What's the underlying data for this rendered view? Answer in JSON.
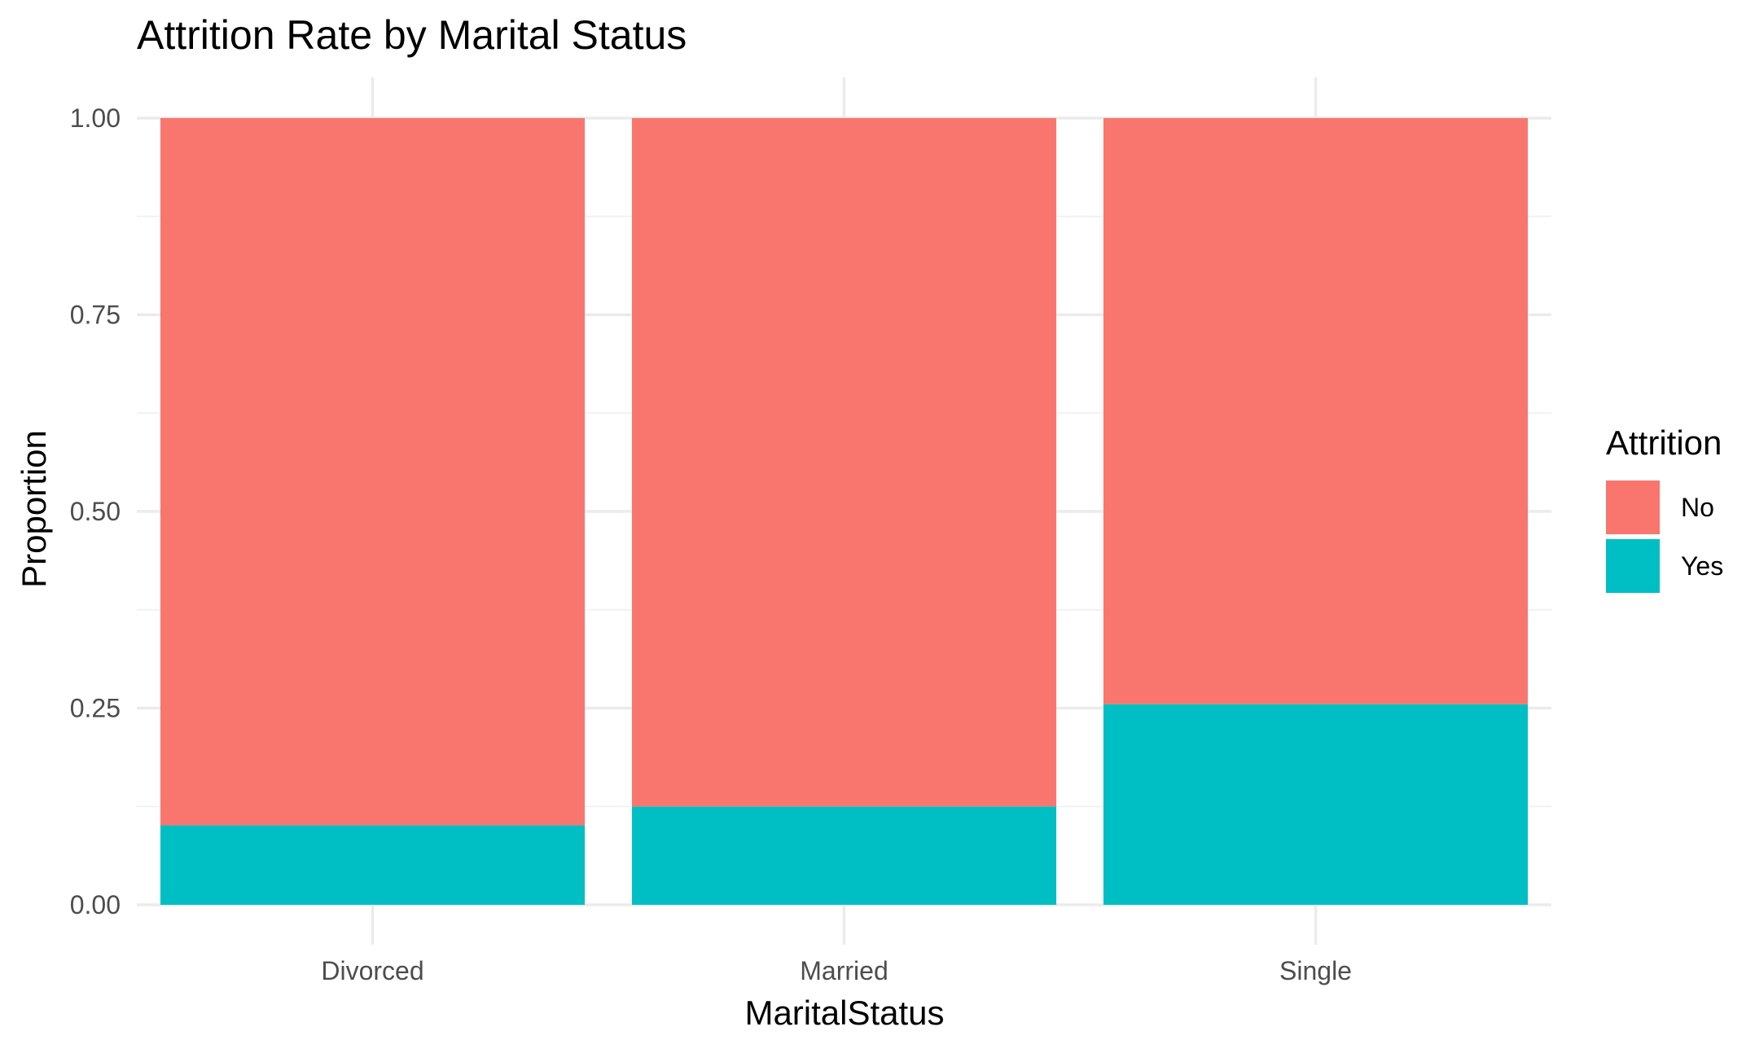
{
  "chart_data": {
    "type": "bar",
    "stacked": true,
    "title": "Attrition Rate by Marital Status",
    "xlabel": "MaritalStatus",
    "ylabel": "Proportion",
    "categories": [
      "Divorced",
      "Married",
      "Single"
    ],
    "series": [
      {
        "name": "No",
        "values": [
          0.899,
          0.875,
          0.745
        ],
        "color": "#F8766D"
      },
      {
        "name": "Yes",
        "values": [
          0.101,
          0.125,
          0.255
        ],
        "color": "#00BFC4"
      }
    ],
    "ylim": [
      0,
      1
    ],
    "yticks": [
      "0.00",
      "0.25",
      "0.50",
      "0.75",
      "1.00"
    ],
    "ytick_values": [
      0,
      0.25,
      0.5,
      0.75,
      1.0
    ],
    "grid": true,
    "legend": {
      "title": "Attrition",
      "position": "right"
    }
  }
}
